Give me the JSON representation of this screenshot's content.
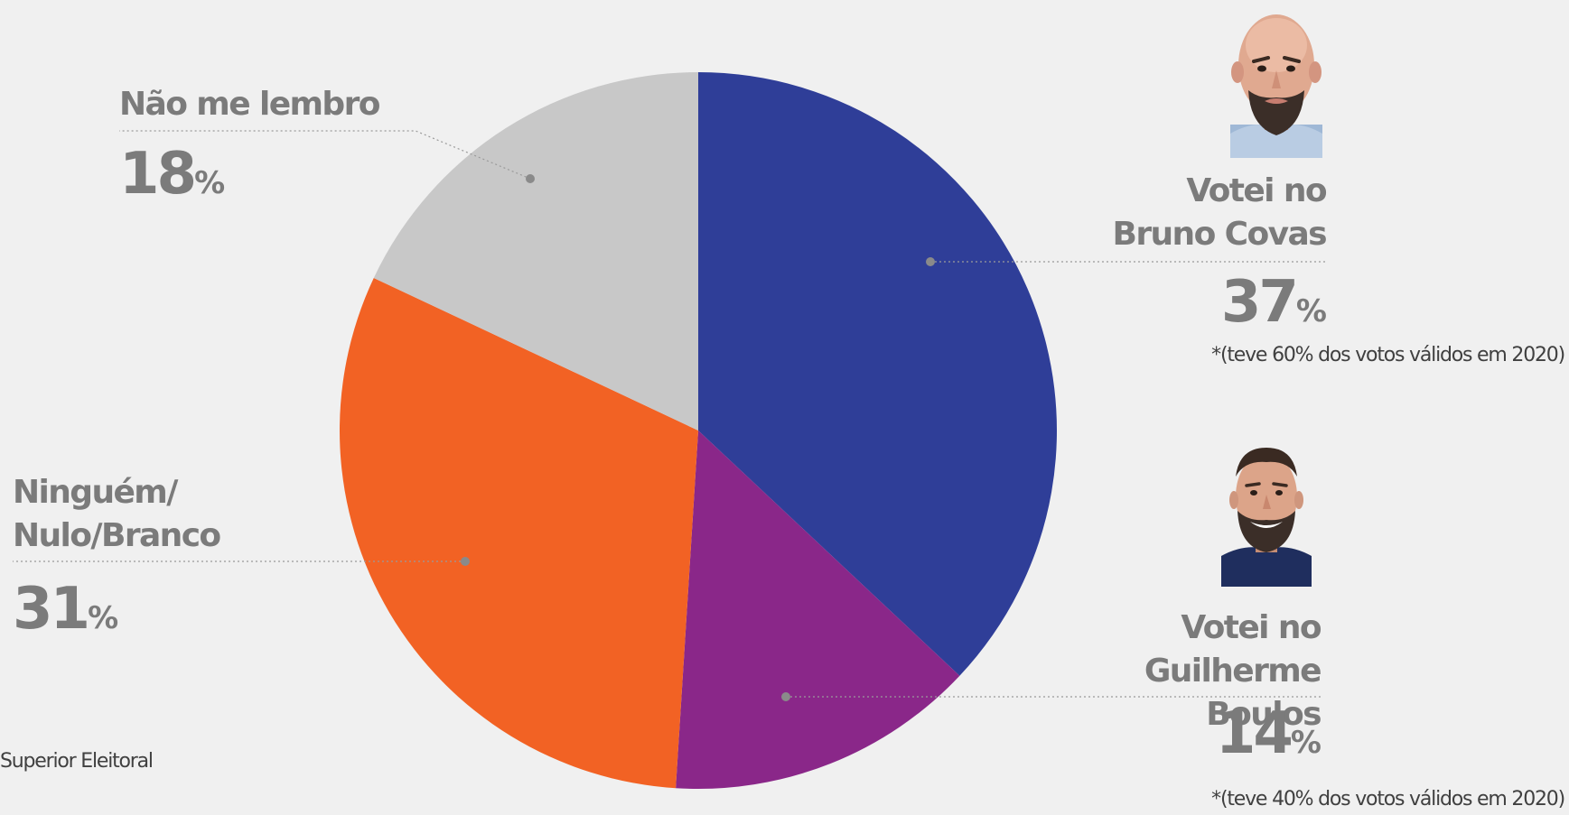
{
  "chart_data": {
    "type": "pie",
    "title": "",
    "start_angle_deg": 0,
    "direction": "clockwise",
    "slices": [
      {
        "label": "Votei no\nBruno Covas",
        "value": 37,
        "color": "#2f3e98",
        "note": "*(teve 60% dos votos válidos em 2020)"
      },
      {
        "label": "Votei no\nGuilherme Boulos",
        "value": 14,
        "color": "#8a2789",
        "note": "*(teve 40% dos votos válidos em 2020)"
      },
      {
        "label": "Ninguém/\nNulo/Branco",
        "value": 31,
        "color": "#f26224",
        "note": ""
      },
      {
        "label": "Não me lembro",
        "value": 18,
        "color": "#c8c8c8",
        "note": ""
      }
    ],
    "percent_unit": "%"
  },
  "source_text": "Superior Eleitoral",
  "portraits": [
    {
      "name": "bruno-covas-caricature-icon"
    },
    {
      "name": "guilherme-boulos-caricature-icon"
    }
  ]
}
